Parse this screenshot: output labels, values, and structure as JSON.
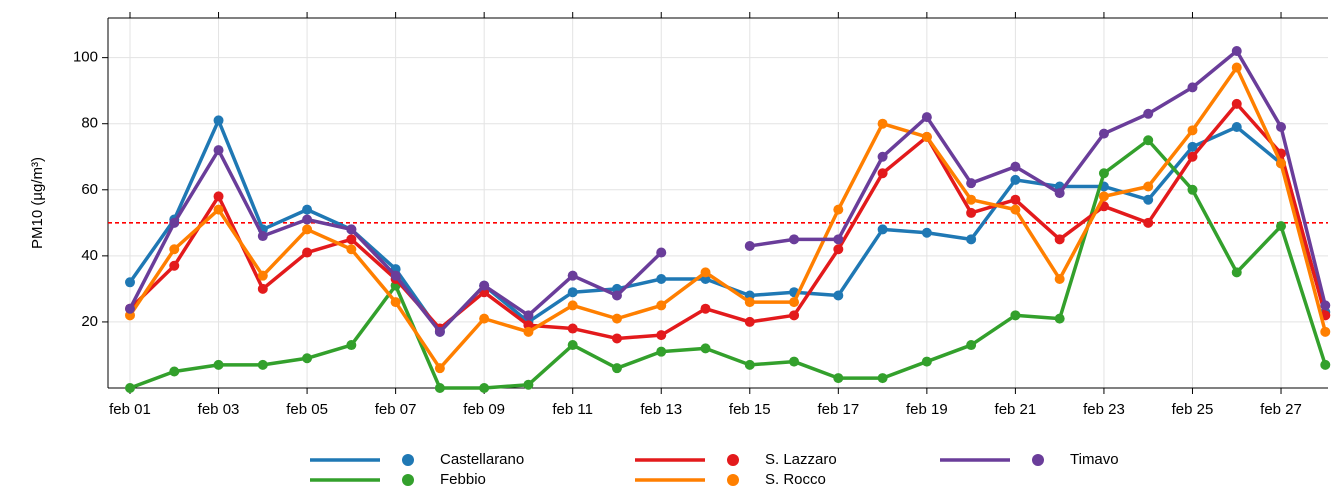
{
  "chart_data": {
    "type": "line",
    "y_label": "PM10 (µg/m³)",
    "categories": [
      "feb 01",
      null,
      "feb 03",
      null,
      "feb 05",
      null,
      "feb 07",
      null,
      "feb 09",
      null,
      "feb 11",
      null,
      "feb 13",
      null,
      "feb 15",
      null,
      "feb 17",
      null,
      "feb 19",
      null,
      "feb 21",
      null,
      "feb 23",
      null,
      "feb 25",
      null,
      "feb 27",
      null
    ],
    "series": [
      {
        "name": "Castellarano",
        "color": "#1f78b4",
        "values": [
          32,
          51,
          81,
          48,
          54,
          48,
          36,
          17,
          31,
          20,
          29,
          30,
          33,
          33,
          28,
          29,
          28,
          48,
          47,
          45,
          63,
          61,
          61,
          57,
          73,
          79,
          68,
          23
        ]
      },
      {
        "name": "Febbio",
        "color": "#33a02c",
        "values": [
          0,
          5,
          7,
          7,
          9,
          13,
          31,
          0,
          0,
          1,
          13,
          6,
          11,
          12,
          7,
          8,
          3,
          3,
          8,
          13,
          22,
          21,
          65,
          75,
          60,
          35,
          49,
          7
        ]
      },
      {
        "name": "S. Lazzaro",
        "color": "#e31a1c",
        "values": [
          24,
          37,
          58,
          30,
          41,
          45,
          33,
          18,
          29,
          19,
          18,
          15,
          16,
          24,
          20,
          22,
          42,
          65,
          76,
          53,
          57,
          45,
          55,
          50,
          70,
          86,
          71,
          22
        ]
      },
      {
        "name": "S. Rocco",
        "color": "#ff7f00",
        "values": [
          22,
          42,
          54,
          34,
          48,
          42,
          26,
          6,
          21,
          17,
          25,
          21,
          25,
          35,
          26,
          26,
          54,
          80,
          76,
          57,
          54,
          33,
          58,
          61,
          78,
          97,
          68,
          17
        ]
      },
      {
        "name": "Timavo",
        "color": "#6a3d9a",
        "values": [
          24,
          50,
          72,
          46,
          51,
          48,
          34,
          17,
          31,
          22,
          34,
          28,
          41,
          null,
          43,
          45,
          45,
          70,
          82,
          62,
          67,
          59,
          77,
          83,
          91,
          102,
          79,
          25
        ]
      }
    ],
    "reference_line": {
      "value": 50,
      "color": "#ff0000"
    },
    "ylim": [
      0,
      112
    ],
    "yticks": [
      20,
      40,
      60,
      80,
      100
    ],
    "grid": true,
    "legend": "bottom"
  }
}
